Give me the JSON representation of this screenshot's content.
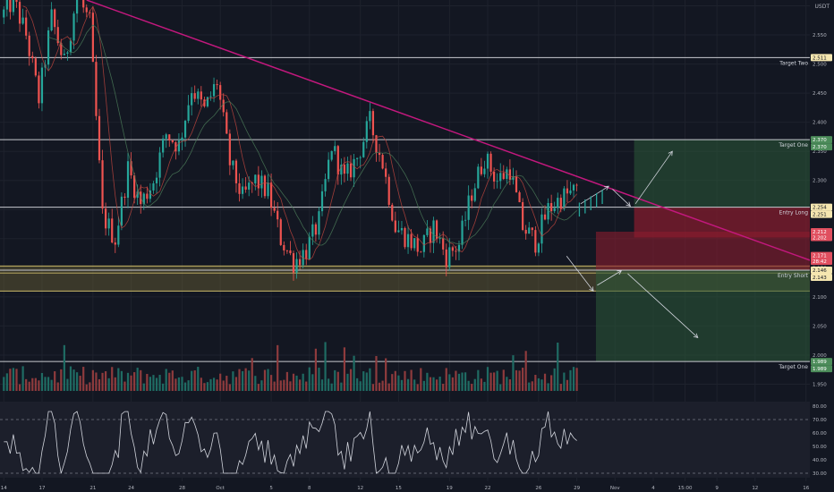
{
  "chart_data": [
    {
      "type": "candlestick",
      "currency": "USDT",
      "y_ticks": [
        "2.600",
        "2.550",
        "2.500",
        "2.450",
        "2.400",
        "2.350",
        "2.300",
        "2.250",
        "2.200",
        "2.150",
        "2.100",
        "2.050",
        "2.000",
        "1.950"
      ],
      "ylim": [
        1.94,
        2.61
      ],
      "x_ticks": [
        {
          "label": "14",
          "day": 0
        },
        {
          "label": "17",
          "day": 3
        },
        {
          "label": "21",
          "day": 7
        },
        {
          "label": "24",
          "day": 10
        },
        {
          "label": "28",
          "day": 14
        },
        {
          "label": "Oct",
          "day": 17
        },
        {
          "label": "5",
          "day": 21
        },
        {
          "label": "8",
          "day": 24
        },
        {
          "label": "12",
          "day": 28
        },
        {
          "label": "15",
          "day": 31
        },
        {
          "label": "19",
          "day": 35
        },
        {
          "label": "22",
          "day": 38
        },
        {
          "label": "26",
          "day": 42
        },
        {
          "label": "29",
          "day": 45
        },
        {
          "label": "Nov",
          "day": 48
        },
        {
          "label": "4",
          "day": 51
        },
        {
          "label": "15:00",
          "day": 53.5
        },
        {
          "label": "9",
          "day": 56
        },
        {
          "label": "12",
          "day": 59
        },
        {
          "label": "16",
          "day": 63
        }
      ],
      "x_range_days": [
        -0.3,
        63.3
      ],
      "price_path": [
        [
          0,
          2.58
        ],
        [
          1,
          2.61
        ],
        [
          2,
          2.55
        ],
        [
          3,
          2.44
        ],
        [
          4,
          2.58
        ],
        [
          5,
          2.5
        ],
        [
          6,
          2.62
        ],
        [
          7,
          2.57
        ],
        [
          8,
          2.24
        ],
        [
          9,
          2.2
        ],
        [
          10,
          2.32
        ],
        [
          11,
          2.26
        ],
        [
          12,
          2.3
        ],
        [
          13,
          2.38
        ],
        [
          14,
          2.36
        ],
        [
          15,
          2.46
        ],
        [
          16,
          2.42
        ],
        [
          17,
          2.47
        ],
        [
          18,
          2.33
        ],
        [
          19,
          2.27
        ],
        [
          20,
          2.3
        ],
        [
          21,
          2.28
        ],
        [
          22,
          2.2
        ],
        [
          23,
          2.16
        ],
        [
          24,
          2.18
        ],
        [
          25,
          2.23
        ],
        [
          26,
          2.36
        ],
        [
          27,
          2.3
        ],
        [
          28,
          2.34
        ],
        [
          29,
          2.4
        ],
        [
          30,
          2.33
        ],
        [
          31,
          2.22
        ],
        [
          32,
          2.2
        ],
        [
          33,
          2.18
        ],
        [
          34,
          2.22
        ],
        [
          35,
          2.17
        ],
        [
          36,
          2.19
        ],
        [
          37,
          2.28
        ],
        [
          38,
          2.34
        ],
        [
          39,
          2.3
        ],
        [
          40,
          2.32
        ],
        [
          41,
          2.22
        ],
        [
          42,
          2.195
        ],
        [
          43,
          2.25
        ],
        [
          44,
          2.27
        ],
        [
          45,
          2.28
        ]
      ],
      "annotations": {
        "horizontal_lines": [
          {
            "price": 2.511,
            "label": "Target Two",
            "tag": "2.511",
            "tag_color": "#f5e6b0"
          },
          {
            "price": 2.37,
            "label": "Target One",
            "tag": "2.370",
            "tag_color": "#4c8c5a",
            "tag2": "2.370"
          },
          {
            "price": 2.254,
            "label": "Entry Long",
            "tag": "2.254",
            "tag_color": "#f5e6b0",
            "tag2": "2.251"
          },
          {
            "price": 2.146,
            "label": "Entry Short",
            "tag": "2.146",
            "tag_color": "#f5e6b0",
            "tag2": "2.143"
          },
          {
            "price": 1.989,
            "label": "Target One",
            "tag": "1.989",
            "tag_color": "#4c8c5a",
            "tag2": "1.989"
          }
        ],
        "extra_price_tags": [
          {
            "price": 2.212,
            "text": "2.212",
            "color": "#e04f5f"
          },
          {
            "price": 2.202,
            "text": "2.202",
            "color": "#e04f5f"
          },
          {
            "price": 2.171,
            "text": "2.171",
            "color": "#e04f5f"
          },
          {
            "price": 2.161,
            "text": "28:42",
            "color": "#e04f5f"
          }
        ],
        "support_zone": [
          2.11,
          2.153
        ],
        "trendline": [
          [
            6.5,
            2.61
          ],
          [
            63.3,
            2.163
          ]
        ]
      }
    },
    {
      "type": "bar",
      "name": "volume",
      "ylim": [
        0,
        1
      ]
    },
    {
      "type": "line",
      "name": "oscillator",
      "y_ticks": [
        "80.00",
        "70.00",
        "60.00",
        "50.00",
        "40.00",
        "30.00"
      ],
      "ylim": [
        28,
        82
      ],
      "levels": [
        70,
        30
      ]
    }
  ]
}
